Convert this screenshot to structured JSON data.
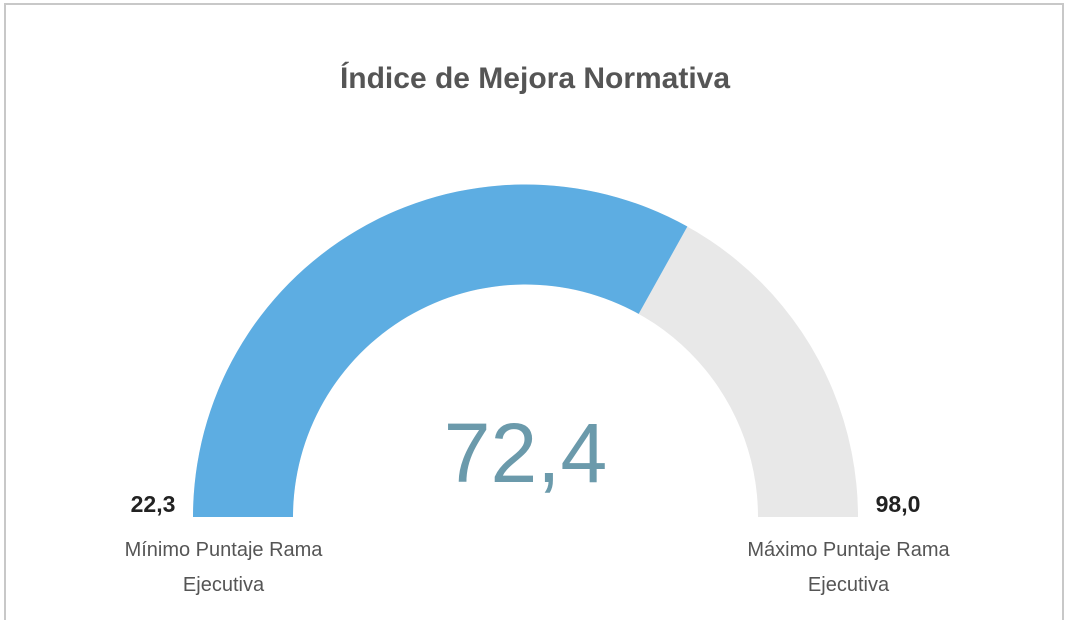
{
  "chart_data": {
    "type": "gauge",
    "title": "Índice de Mejora Normativa",
    "values": [
      72.4
    ],
    "value_labels": [
      "72,4"
    ],
    "color": "#5dade2",
    "track_color": "#e8e8e8",
    "ylim": [
      22.3,
      98.0
    ],
    "yticks": [
      {
        "value": 22.3,
        "label": "22,3"
      },
      {
        "value": 98.0,
        "label": "98,0"
      }
    ],
    "annotations": [
      "Mínimo Puntaje Rama Ejecutiva",
      "Máximo Puntaje Rama Ejecutiva"
    ]
  }
}
